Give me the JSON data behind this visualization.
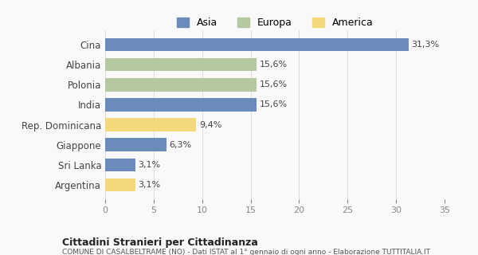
{
  "categories": [
    "Cina",
    "Albania",
    "Polonia",
    "India",
    "Rep. Dominicana",
    "Giappone",
    "Sri Lanka",
    "Argentina"
  ],
  "values": [
    31.3,
    15.6,
    15.6,
    15.6,
    9.4,
    6.3,
    3.1,
    3.1
  ],
  "labels": [
    "31,3%",
    "15,6%",
    "15,6%",
    "15,6%",
    "9,4%",
    "6,3%",
    "3,1%",
    "3,1%"
  ],
  "colors": [
    "#6b8cba",
    "#b5c9a0",
    "#b5c9a0",
    "#6b8cba",
    "#f5d87a",
    "#6b8cba",
    "#6b8cba",
    "#f5d87a"
  ],
  "legend_labels": [
    "Asia",
    "Europa",
    "America"
  ],
  "legend_colors": [
    "#6b8cba",
    "#b5c9a0",
    "#f5d87a"
  ],
  "xlim": [
    0,
    35
  ],
  "xticks": [
    0,
    5,
    10,
    15,
    20,
    25,
    30,
    35
  ],
  "title1": "Cittadini Stranieri per Cittadinanza",
  "title2": "COMUNE DI CASALBELTRAME (NO) - Dati ISTAT al 1° gennaio di ogni anno - Elaborazione TUTTITALIA.IT",
  "background_color": "#f9f9f9"
}
